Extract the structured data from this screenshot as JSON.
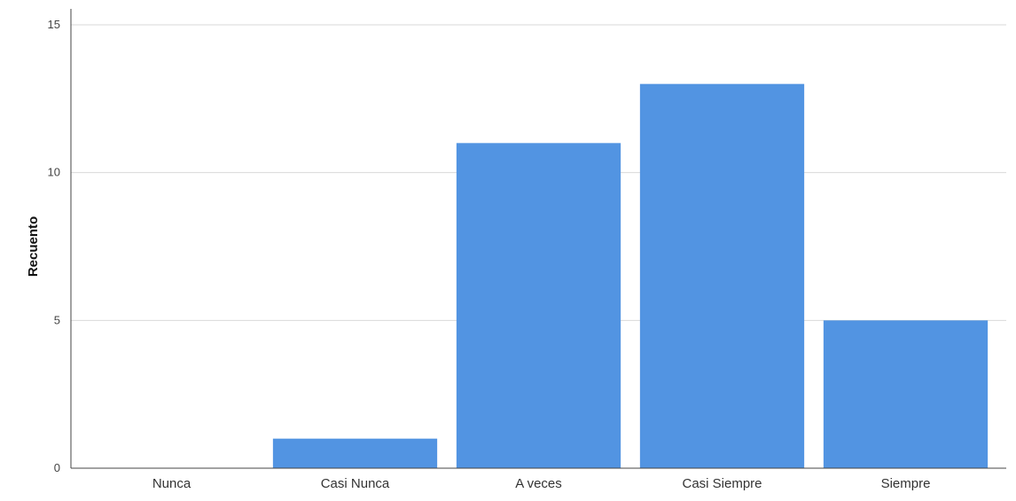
{
  "chart_data": {
    "type": "bar",
    "categories": [
      "Nunca",
      "Casi Nunca",
      "A veces",
      "Casi Siempre",
      "Siempre"
    ],
    "values": [
      0,
      1,
      11,
      13,
      5
    ],
    "ylabel": "Recuento",
    "xlabel": "",
    "ylim": [
      0,
      15
    ],
    "yticks": [
      0,
      5,
      10,
      15
    ],
    "grid": true,
    "bar_color": "#5294e2",
    "grid_color": "#d9d9d9",
    "axis_color": "#444444"
  }
}
